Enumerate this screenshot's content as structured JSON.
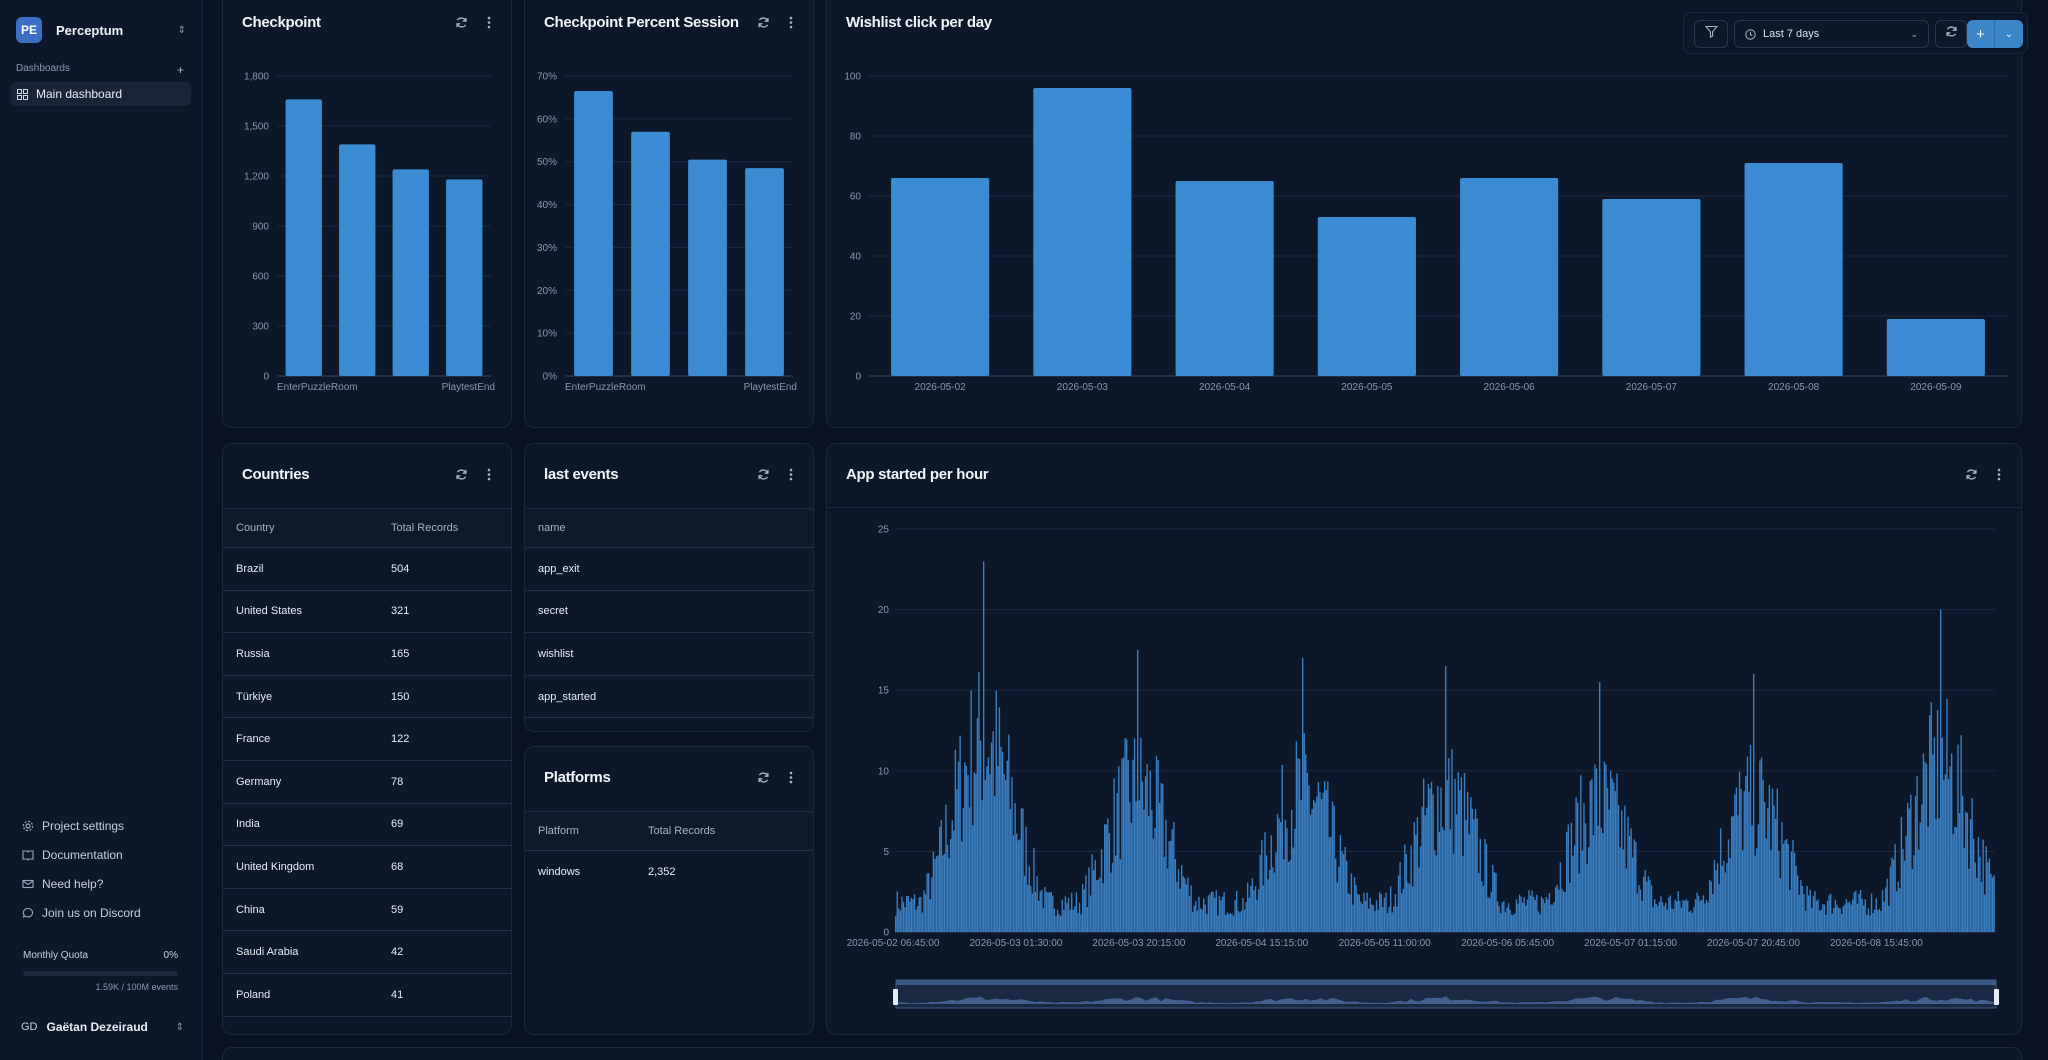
{
  "sidebar": {
    "workspace_initials": "PE",
    "workspace_name": "Perceptum",
    "section_label": "Dashboards",
    "active_item": "Main dashboard",
    "links": [
      "Project settings",
      "Documentation",
      "Need help?",
      "Join us on Discord"
    ],
    "quota_label": "Monthly Quota",
    "quota_percent": "0%",
    "quota_usage": "1.59K / 100M events",
    "user_initials": "GD",
    "user_name": "Gaëtan Dezeiraud"
  },
  "toolbar": {
    "date_range": "Last 7 days"
  },
  "cards": {
    "checkpoint": "Checkpoint",
    "checkpoint_percent": "Checkpoint Percent Session",
    "wishlist": "Wishlist click per day",
    "countries": "Countries",
    "last_events": "last events",
    "platforms": "Platforms",
    "app_started": "App started per hour"
  },
  "countries_table": {
    "columns": [
      "Country",
      "Total Records"
    ],
    "rows": [
      [
        "Brazil",
        "504"
      ],
      [
        "United States",
        "321"
      ],
      [
        "Russia",
        "165"
      ],
      [
        "Türkiye",
        "150"
      ],
      [
        "France",
        "122"
      ],
      [
        "Germany",
        "78"
      ],
      [
        "India",
        "69"
      ],
      [
        "United Kingdom",
        "68"
      ],
      [
        "China",
        "59"
      ],
      [
        "Saudi Arabia",
        "42"
      ],
      [
        "Poland",
        "41"
      ]
    ]
  },
  "events_table": {
    "columns": [
      "name"
    ],
    "rows": [
      "app_exit",
      "secret",
      "wishlist",
      "app_started"
    ]
  },
  "platforms_table": {
    "columns": [
      "Platform",
      "Total Records"
    ],
    "rows": [
      [
        "windows",
        "2,352"
      ]
    ]
  },
  "chart_data": [
    {
      "type": "bar",
      "categories": [
        "EnterPuzzleRoom",
        "",
        "",
        "PlaytestEnd"
      ],
      "values": [
        1660,
        1390,
        1240,
        1180
      ],
      "ylim": [
        0,
        1800
      ],
      "yticks": [
        "0",
        "300",
        "600",
        "900",
        "1,200",
        "1,500",
        "1,800"
      ],
      "title": "Checkpoint",
      "color": "#3a8bd1"
    },
    {
      "type": "bar",
      "categories": [
        "EnterPuzzleRoom",
        "",
        "",
        "PlaytestEnd"
      ],
      "values": [
        66.5,
        57,
        50.5,
        48.5
      ],
      "ylim": [
        0,
        70
      ],
      "yticks": [
        "0%",
        "10%",
        "20%",
        "30%",
        "40%",
        "50%",
        "60%",
        "70%"
      ],
      "title": "Checkpoint Percent Session",
      "color": "#3a8bd1"
    },
    {
      "type": "bar",
      "categories": [
        "2026-05-02",
        "2026-05-03",
        "2026-05-04",
        "2026-05-05",
        "2026-05-06",
        "2026-05-07",
        "2026-05-08",
        "2026-05-09"
      ],
      "values": [
        66,
        96,
        65,
        53,
        66,
        59,
        71,
        19
      ],
      "ylim": [
        0,
        100
      ],
      "yticks": [
        "0",
        "20",
        "40",
        "60",
        "80",
        "100"
      ],
      "title": "Wishlist click per day",
      "color": "#3a8bd1"
    },
    {
      "type": "bar",
      "title": "App started per hour",
      "ylim": [
        0,
        25
      ],
      "yticks": [
        "0",
        "5",
        "10",
        "15",
        "20",
        "25"
      ],
      "xticks": [
        "2026-05-02 06:45:00",
        "2026-05-03 01:30:00",
        "2026-05-03 20:15:00",
        "2026-05-04 15:15:00",
        "2026-05-05 11:00:00",
        "2026-05-06 05:45:00",
        "2026-05-07 01:15:00",
        "2026-05-07 20:45:00",
        "2026-05-08 15:45:00"
      ],
      "peaks": [
        {
          "x": 2026050300,
          "value": 23
        },
        {
          "x": 2026050317,
          "value": 17.5
        },
        {
          "x": 2026050409,
          "value": 17
        },
        {
          "x": 2026050509,
          "value": 16.5
        },
        {
          "x": 2026050611,
          "value": 15.5
        },
        {
          "x": 2026050717,
          "value": 16
        },
        {
          "x": 2026050819,
          "value": 20
        }
      ],
      "color": "#3a7fc2"
    }
  ]
}
